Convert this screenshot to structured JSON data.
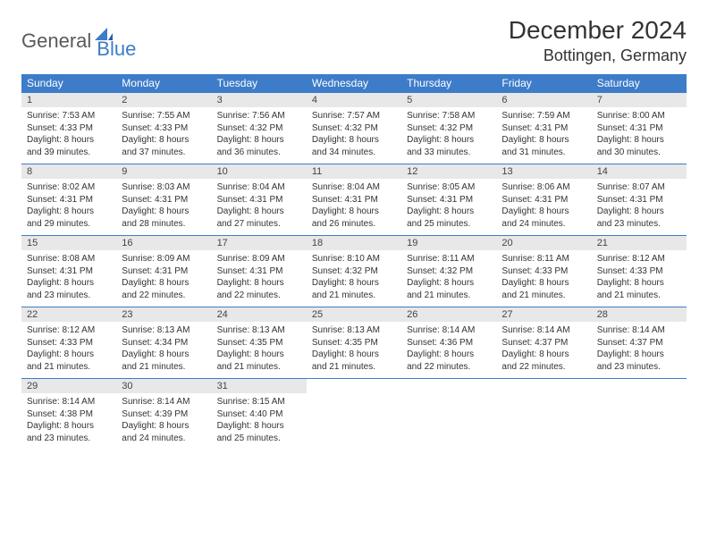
{
  "logo": {
    "general": "General",
    "blue": "Blue"
  },
  "title": "December 2024",
  "location": "Bottingen, Germany",
  "colors": {
    "header_bg": "#3d7cc9",
    "header_fg": "#ffffff",
    "daynum_bg": "#e8e8e8",
    "cell_border": "#3d7cc9",
    "text": "#333333",
    "logo_gray": "#5a5a5a",
    "logo_blue": "#3d7cc9"
  },
  "weekdays": [
    "Sunday",
    "Monday",
    "Tuesday",
    "Wednesday",
    "Thursday",
    "Friday",
    "Saturday"
  ],
  "weeks": [
    [
      {
        "day": "1",
        "sunrise": "Sunrise: 7:53 AM",
        "sunset": "Sunset: 4:33 PM",
        "daylight": "Daylight: 8 hours and 39 minutes."
      },
      {
        "day": "2",
        "sunrise": "Sunrise: 7:55 AM",
        "sunset": "Sunset: 4:33 PM",
        "daylight": "Daylight: 8 hours and 37 minutes."
      },
      {
        "day": "3",
        "sunrise": "Sunrise: 7:56 AM",
        "sunset": "Sunset: 4:32 PM",
        "daylight": "Daylight: 8 hours and 36 minutes."
      },
      {
        "day": "4",
        "sunrise": "Sunrise: 7:57 AM",
        "sunset": "Sunset: 4:32 PM",
        "daylight": "Daylight: 8 hours and 34 minutes."
      },
      {
        "day": "5",
        "sunrise": "Sunrise: 7:58 AM",
        "sunset": "Sunset: 4:32 PM",
        "daylight": "Daylight: 8 hours and 33 minutes."
      },
      {
        "day": "6",
        "sunrise": "Sunrise: 7:59 AM",
        "sunset": "Sunset: 4:31 PM",
        "daylight": "Daylight: 8 hours and 31 minutes."
      },
      {
        "day": "7",
        "sunrise": "Sunrise: 8:00 AM",
        "sunset": "Sunset: 4:31 PM",
        "daylight": "Daylight: 8 hours and 30 minutes."
      }
    ],
    [
      {
        "day": "8",
        "sunrise": "Sunrise: 8:02 AM",
        "sunset": "Sunset: 4:31 PM",
        "daylight": "Daylight: 8 hours and 29 minutes."
      },
      {
        "day": "9",
        "sunrise": "Sunrise: 8:03 AM",
        "sunset": "Sunset: 4:31 PM",
        "daylight": "Daylight: 8 hours and 28 minutes."
      },
      {
        "day": "10",
        "sunrise": "Sunrise: 8:04 AM",
        "sunset": "Sunset: 4:31 PM",
        "daylight": "Daylight: 8 hours and 27 minutes."
      },
      {
        "day": "11",
        "sunrise": "Sunrise: 8:04 AM",
        "sunset": "Sunset: 4:31 PM",
        "daylight": "Daylight: 8 hours and 26 minutes."
      },
      {
        "day": "12",
        "sunrise": "Sunrise: 8:05 AM",
        "sunset": "Sunset: 4:31 PM",
        "daylight": "Daylight: 8 hours and 25 minutes."
      },
      {
        "day": "13",
        "sunrise": "Sunrise: 8:06 AM",
        "sunset": "Sunset: 4:31 PM",
        "daylight": "Daylight: 8 hours and 24 minutes."
      },
      {
        "day": "14",
        "sunrise": "Sunrise: 8:07 AM",
        "sunset": "Sunset: 4:31 PM",
        "daylight": "Daylight: 8 hours and 23 minutes."
      }
    ],
    [
      {
        "day": "15",
        "sunrise": "Sunrise: 8:08 AM",
        "sunset": "Sunset: 4:31 PM",
        "daylight": "Daylight: 8 hours and 23 minutes."
      },
      {
        "day": "16",
        "sunrise": "Sunrise: 8:09 AM",
        "sunset": "Sunset: 4:31 PM",
        "daylight": "Daylight: 8 hours and 22 minutes."
      },
      {
        "day": "17",
        "sunrise": "Sunrise: 8:09 AM",
        "sunset": "Sunset: 4:31 PM",
        "daylight": "Daylight: 8 hours and 22 minutes."
      },
      {
        "day": "18",
        "sunrise": "Sunrise: 8:10 AM",
        "sunset": "Sunset: 4:32 PM",
        "daylight": "Daylight: 8 hours and 21 minutes."
      },
      {
        "day": "19",
        "sunrise": "Sunrise: 8:11 AM",
        "sunset": "Sunset: 4:32 PM",
        "daylight": "Daylight: 8 hours and 21 minutes."
      },
      {
        "day": "20",
        "sunrise": "Sunrise: 8:11 AM",
        "sunset": "Sunset: 4:33 PM",
        "daylight": "Daylight: 8 hours and 21 minutes."
      },
      {
        "day": "21",
        "sunrise": "Sunrise: 8:12 AM",
        "sunset": "Sunset: 4:33 PM",
        "daylight": "Daylight: 8 hours and 21 minutes."
      }
    ],
    [
      {
        "day": "22",
        "sunrise": "Sunrise: 8:12 AM",
        "sunset": "Sunset: 4:33 PM",
        "daylight": "Daylight: 8 hours and 21 minutes."
      },
      {
        "day": "23",
        "sunrise": "Sunrise: 8:13 AM",
        "sunset": "Sunset: 4:34 PM",
        "daylight": "Daylight: 8 hours and 21 minutes."
      },
      {
        "day": "24",
        "sunrise": "Sunrise: 8:13 AM",
        "sunset": "Sunset: 4:35 PM",
        "daylight": "Daylight: 8 hours and 21 minutes."
      },
      {
        "day": "25",
        "sunrise": "Sunrise: 8:13 AM",
        "sunset": "Sunset: 4:35 PM",
        "daylight": "Daylight: 8 hours and 21 minutes."
      },
      {
        "day": "26",
        "sunrise": "Sunrise: 8:14 AM",
        "sunset": "Sunset: 4:36 PM",
        "daylight": "Daylight: 8 hours and 22 minutes."
      },
      {
        "day": "27",
        "sunrise": "Sunrise: 8:14 AM",
        "sunset": "Sunset: 4:37 PM",
        "daylight": "Daylight: 8 hours and 22 minutes."
      },
      {
        "day": "28",
        "sunrise": "Sunrise: 8:14 AM",
        "sunset": "Sunset: 4:37 PM",
        "daylight": "Daylight: 8 hours and 23 minutes."
      }
    ],
    [
      {
        "day": "29",
        "sunrise": "Sunrise: 8:14 AM",
        "sunset": "Sunset: 4:38 PM",
        "daylight": "Daylight: 8 hours and 23 minutes."
      },
      {
        "day": "30",
        "sunrise": "Sunrise: 8:14 AM",
        "sunset": "Sunset: 4:39 PM",
        "daylight": "Daylight: 8 hours and 24 minutes."
      },
      {
        "day": "31",
        "sunrise": "Sunrise: 8:15 AM",
        "sunset": "Sunset: 4:40 PM",
        "daylight": "Daylight: 8 hours and 25 minutes."
      },
      null,
      null,
      null,
      null
    ]
  ]
}
